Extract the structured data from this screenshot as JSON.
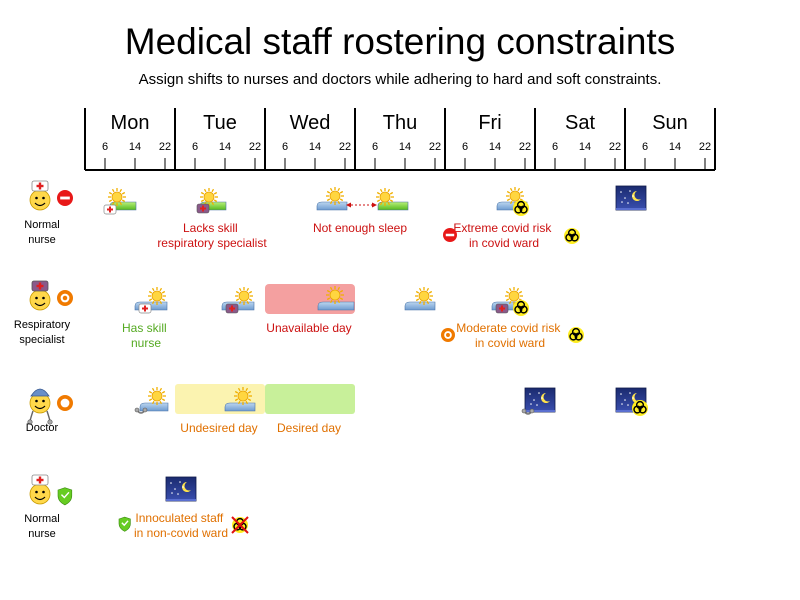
{
  "title": "Medical staff rostering constraints",
  "subtitle": "Assign shifts to nurses and doctors while adhering to hard and soft constraints.",
  "days": [
    "Mon",
    "Tue",
    "Wed",
    "Thu",
    "Fri",
    "Sat",
    "Sun"
  ],
  "hours": [
    "6",
    "14",
    "22"
  ],
  "rows": [
    {
      "label": [
        "Normal",
        "nurse"
      ],
      "role": "nurse",
      "badge": "red"
    },
    {
      "label": [
        "Respiratory",
        "specialist"
      ],
      "role": "specialist",
      "badge": "orange-dot"
    },
    {
      "label": [
        "Doctor"
      ],
      "role": "doctor",
      "badge": "orange-ring"
    },
    {
      "label": [
        "Normal",
        "nurse"
      ],
      "role": "nurse",
      "badge": "green"
    }
  ],
  "annotations": {
    "lacks_skill": [
      "Lacks skill",
      "respiratory specialist"
    ],
    "not_enough_sleep": [
      "Not enough sleep"
    ],
    "extreme_covid": [
      "Extreme covid risk",
      "in covid ward"
    ],
    "has_skill": [
      "Has skill",
      "nurse"
    ],
    "unavailable_day": [
      "Unavailable day"
    ],
    "moderate_covid": [
      "Moderate covid risk",
      "in covid ward"
    ],
    "undesired_day": [
      "Undesired day"
    ],
    "desired_day": [
      "Desired day"
    ],
    "innoculated": [
      "Innoculated staff",
      "in non-covid ward"
    ]
  },
  "colors": {
    "hard": "#cc1111",
    "soft": "#e07000",
    "good": "#55aa22",
    "unavailable": "#f4a0a0",
    "undesired": "#fbf3b0",
    "desired": "#c8f09a"
  },
  "icons": [
    "sun-icon",
    "moon-icon",
    "biohazard-icon",
    "red-cross-icon",
    "stethoscope-icon",
    "shield-check-icon"
  ]
}
